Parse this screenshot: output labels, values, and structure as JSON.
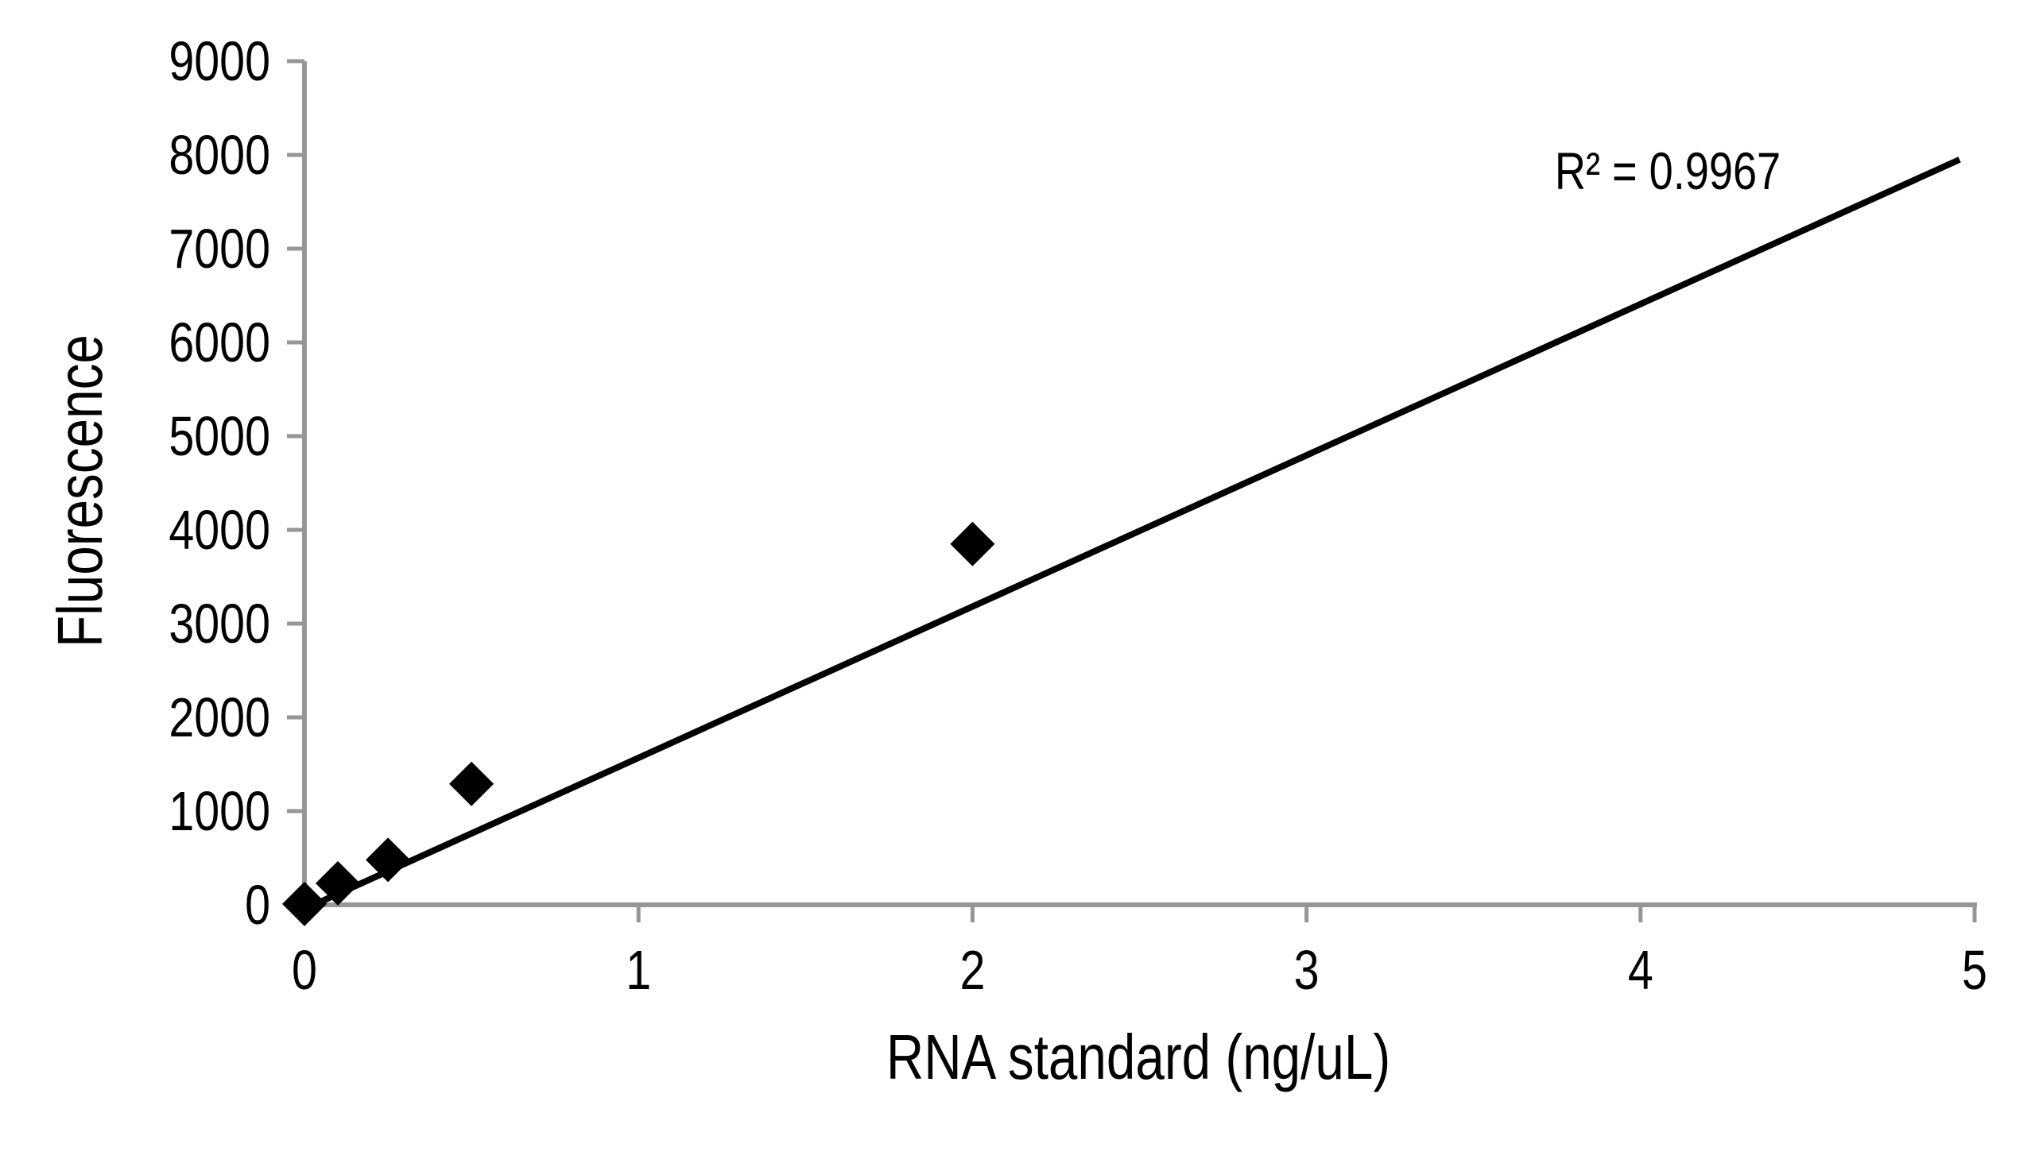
{
  "figure": {
    "background": "#ffffff"
  },
  "chart_data": {
    "type": "scatter",
    "title": "",
    "xlabel": "RNA standard (ng/uL)",
    "ylabel": "Fluorescence",
    "xlim": [
      0,
      5
    ],
    "ylim": [
      0,
      9000
    ],
    "xticks": [
      0,
      1,
      2,
      3,
      4,
      5
    ],
    "yticks": [
      0,
      1000,
      2000,
      3000,
      4000,
      5000,
      6000,
      7000,
      8000,
      9000
    ],
    "grid": false,
    "legend": "none",
    "annotation": "R² = 0.9967",
    "r_squared": 0.9967,
    "points": [
      {
        "x": 0,
        "y": 10
      },
      {
        "x": 0.1,
        "y": 230
      },
      {
        "x": 0.25,
        "y": 480
      },
      {
        "x": 0.5,
        "y": 1290
      },
      {
        "x": 2,
        "y": 3850
      }
    ],
    "trendline": {
      "x1": 0,
      "y1": -45,
      "x2": 4.955,
      "y2": 7950
    },
    "marker": "diamond",
    "colors": {
      "marker": "#000000",
      "trendline": "#000000",
      "axis": "#969696",
      "text": "#000000"
    }
  }
}
